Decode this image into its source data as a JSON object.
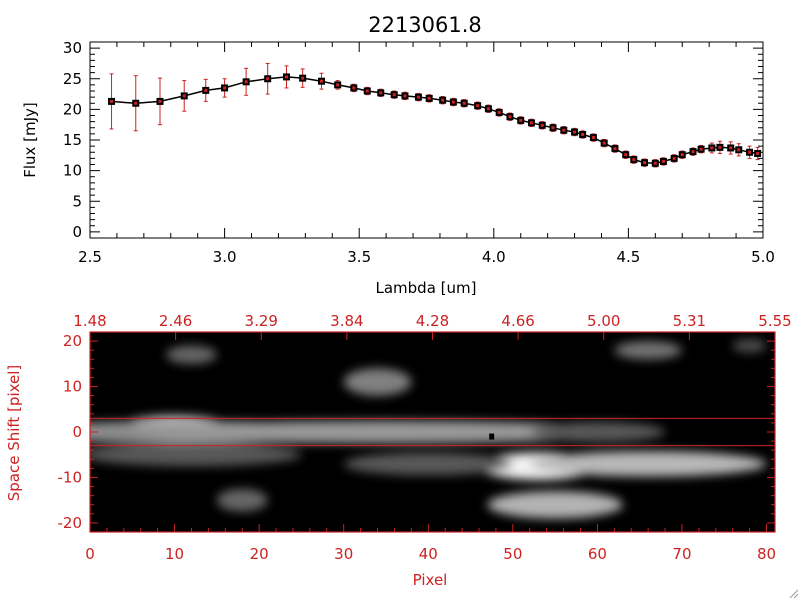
{
  "accent_red": "#cc2222",
  "chart_data": [
    {
      "type": "line",
      "title": "2213061.8",
      "xlabel": "Lambda [um]",
      "ylabel": "Flux [mJy]",
      "xlim": [
        2.5,
        5.0
      ],
      "ylim": [
        -1,
        31
      ],
      "xticks": [
        "2.5",
        "3.0",
        "3.5",
        "4.0",
        "4.5",
        "5.0"
      ],
      "yticks": [
        "0",
        "5",
        "10",
        "15",
        "20",
        "25",
        "30"
      ],
      "series": [
        {
          "x": [
            2.58,
            2.67,
            2.76,
            2.85,
            2.93,
            3.0,
            3.08,
            3.16,
            3.23,
            3.29,
            3.36,
            3.42,
            3.48,
            3.53,
            3.58,
            3.63,
            3.67,
            3.72,
            3.76,
            3.81,
            3.85,
            3.89,
            3.94,
            3.98,
            4.02,
            4.06,
            4.1,
            4.14,
            4.18,
            4.22,
            4.26,
            4.3,
            4.33,
            4.37,
            4.41,
            4.45,
            4.49,
            4.52,
            4.56,
            4.6,
            4.63,
            4.67,
            4.7,
            4.74,
            4.77,
            4.81,
            4.84,
            4.88,
            4.91,
            4.95,
            4.98
          ],
          "y": [
            21.3,
            21.0,
            21.3,
            22.2,
            23.1,
            23.5,
            24.5,
            25.0,
            25.3,
            25.1,
            24.6,
            24.0,
            23.5,
            23.0,
            22.7,
            22.4,
            22.2,
            22.0,
            21.8,
            21.5,
            21.2,
            21.0,
            20.6,
            20.1,
            19.5,
            18.8,
            18.2,
            17.8,
            17.4,
            17.0,
            16.6,
            16.3,
            15.9,
            15.4,
            14.5,
            13.6,
            12.6,
            11.8,
            11.3,
            11.2,
            11.5,
            12.0,
            12.6,
            13.1,
            13.5,
            13.7,
            13.8,
            13.7,
            13.4,
            13.0,
            12.8
          ],
          "yerr": [
            4.5,
            4.5,
            3.8,
            2.5,
            1.8,
            1.5,
            2.2,
            2.5,
            1.8,
            1.5,
            1.3,
            0.7,
            0.6,
            0.6,
            0.6,
            0.6,
            0.6,
            0.6,
            0.6,
            0.6,
            0.6,
            0.6,
            0.6,
            0.6,
            0.6,
            0.6,
            0.6,
            0.6,
            0.6,
            0.6,
            0.6,
            0.6,
            0.6,
            0.6,
            0.6,
            0.6,
            0.6,
            0.6,
            0.6,
            0.6,
            0.6,
            0.6,
            0.6,
            0.6,
            0.6,
            0.8,
            1.0,
            1.0,
            1.0,
            1.0,
            1.0
          ]
        }
      ]
    },
    {
      "type": "heatmap",
      "xlabel": "Pixel",
      "ylabel": "Space Shift [pixel]",
      "xlim": [
        0,
        81
      ],
      "ylim": [
        -22,
        22
      ],
      "xticks": [
        "0",
        "10",
        "20",
        "30",
        "40",
        "50",
        "60",
        "70",
        "80"
      ],
      "yticks": [
        "-20",
        "-10",
        "0",
        "10",
        "20"
      ],
      "top_axis_labels": [
        "1.48",
        "2.46",
        "3.29",
        "3.84",
        "4.28",
        "4.66",
        "5.00",
        "5.31",
        "5.55"
      ],
      "extraction_window": [
        -3,
        3
      ],
      "sources": [
        {
          "x": 10,
          "y": 0.5,
          "w": 7,
          "h": 3,
          "level": 0.95
        },
        {
          "x": 11,
          "y": 0,
          "w": 20,
          "h": 2.5,
          "level": 0.55
        },
        {
          "x": 35,
          "y": 0,
          "w": 30,
          "h": 2.5,
          "level": 0.6
        },
        {
          "x": 60,
          "y": 0,
          "w": 8,
          "h": 2.2,
          "level": 0.35
        },
        {
          "x": 53,
          "y": -7.5,
          "w": 7,
          "h": 3,
          "level": 0.95
        },
        {
          "x": 66,
          "y": -7,
          "w": 14,
          "h": 2.8,
          "level": 0.72
        },
        {
          "x": 40,
          "y": -7,
          "w": 10,
          "h": 2.5,
          "level": 0.35
        },
        {
          "x": 12,
          "y": -5,
          "w": 13,
          "h": 2.5,
          "level": 0.35
        },
        {
          "x": 55,
          "y": -16,
          "w": 8,
          "h": 3,
          "level": 0.7
        },
        {
          "x": 18,
          "y": -15,
          "w": 3,
          "h": 2.5,
          "level": 0.4
        },
        {
          "x": 34,
          "y": 11,
          "w": 4,
          "h": 3,
          "level": 0.5
        },
        {
          "x": 12,
          "y": 17,
          "w": 3,
          "h": 2,
          "level": 0.4
        },
        {
          "x": 66,
          "y": 18,
          "w": 4,
          "h": 2,
          "level": 0.45
        },
        {
          "x": 78,
          "y": 19,
          "w": 2,
          "h": 1.5,
          "level": 0.3
        }
      ],
      "marker": {
        "x": 47.5,
        "y": -1
      }
    }
  ]
}
